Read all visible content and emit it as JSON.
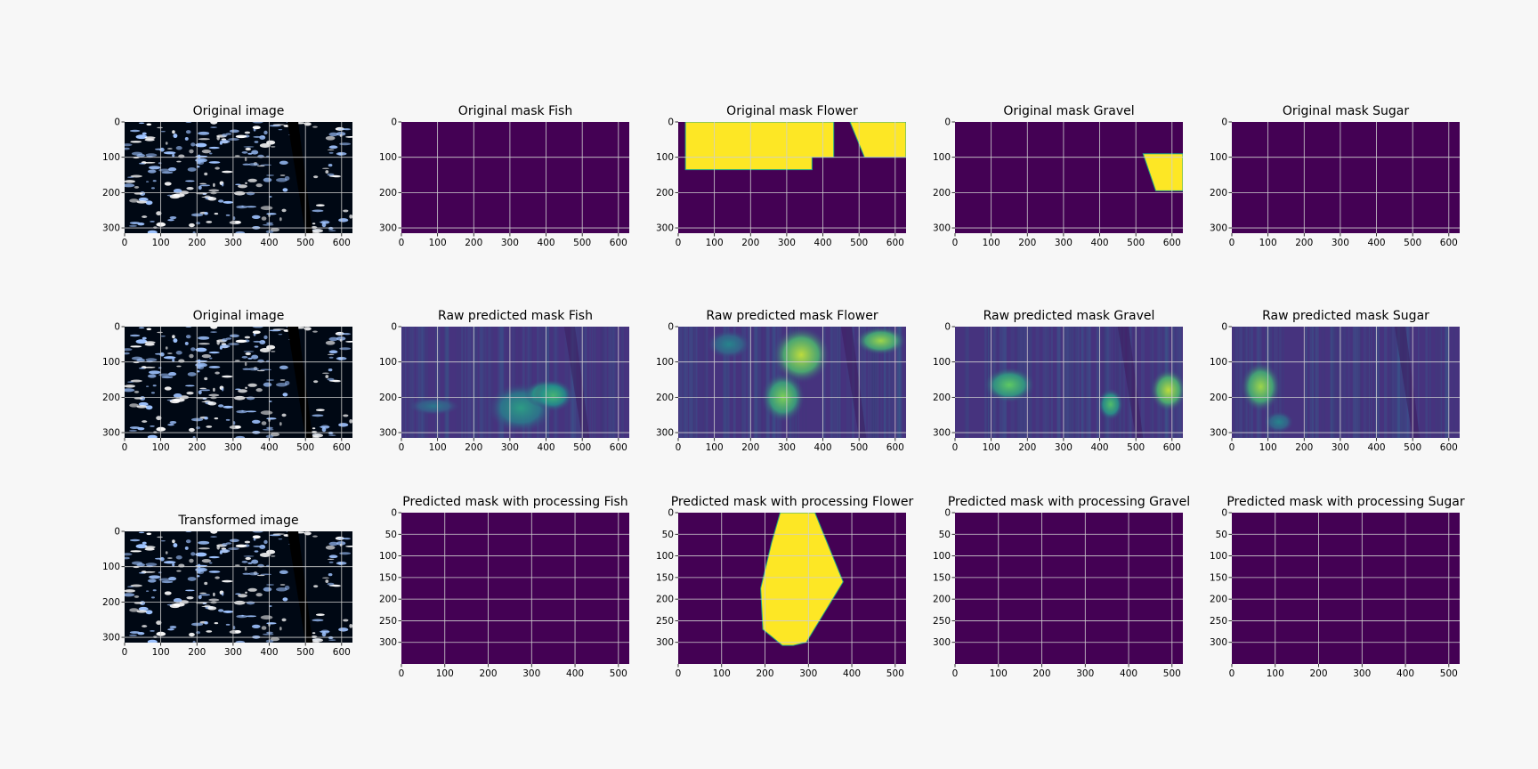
{
  "figure": {
    "rows": 3,
    "cols": 5,
    "colors": {
      "background": "#f7f7f7",
      "mask_low": "#440154",
      "mask_high": "#fde725",
      "mask_edge": "#22a884",
      "grid": "#cfcfcf",
      "image_dark": "#000814",
      "cloud": "#ffffff",
      "cloud_tint": "#9ec3ff"
    }
  },
  "chart_data": [
    {
      "type": "heatmap",
      "title": "Original image",
      "content": "satellite-image",
      "xticks": [
        "0",
        "100",
        "200",
        "300",
        "400",
        "500",
        "600"
      ],
      "yticks": [
        "0",
        "100",
        "200",
        "300"
      ],
      "xlim": [
        0,
        630
      ],
      "ylim": [
        0,
        315
      ]
    },
    {
      "type": "heatmap",
      "title": "Original mask Fish",
      "content": "empty-mask",
      "xticks": [
        "0",
        "100",
        "200",
        "300",
        "400",
        "500",
        "600"
      ],
      "yticks": [
        "0",
        "100",
        "200",
        "300"
      ],
      "xlim": [
        0,
        630
      ],
      "ylim": [
        0,
        315
      ]
    },
    {
      "type": "heatmap",
      "title": "Original mask Flower",
      "content": "mask-flower",
      "xticks": [
        "0",
        "100",
        "200",
        "300",
        "400",
        "500",
        "600"
      ],
      "yticks": [
        "0",
        "100",
        "200",
        "300"
      ],
      "xlim": [
        0,
        630
      ],
      "ylim": [
        0,
        315
      ],
      "regions": [
        {
          "shape": "polygon",
          "points": [
            [
              20,
              0
            ],
            [
              430,
              0
            ],
            [
              430,
              100
            ],
            [
              370,
              100
            ],
            [
              370,
              135
            ],
            [
              20,
              135
            ]
          ]
        },
        {
          "shape": "polygon",
          "points": [
            [
              475,
              0
            ],
            [
              630,
              0
            ],
            [
              630,
              100
            ],
            [
              515,
              100
            ]
          ]
        }
      ]
    },
    {
      "type": "heatmap",
      "title": "Original mask Gravel",
      "content": "mask-gravel",
      "xticks": [
        "0",
        "100",
        "200",
        "300",
        "400",
        "500",
        "600"
      ],
      "yticks": [
        "0",
        "100",
        "200",
        "300"
      ],
      "xlim": [
        0,
        630
      ],
      "ylim": [
        0,
        315
      ],
      "regions": [
        {
          "shape": "polygon",
          "points": [
            [
              520,
              90
            ],
            [
              630,
              90
            ],
            [
              630,
              195
            ],
            [
              555,
              195
            ]
          ]
        }
      ]
    },
    {
      "type": "heatmap",
      "title": "Original mask Sugar",
      "content": "empty-mask",
      "xticks": [
        "0",
        "100",
        "200",
        "300",
        "400",
        "500",
        "600"
      ],
      "yticks": [
        "0",
        "100",
        "200",
        "300"
      ],
      "xlim": [
        0,
        630
      ],
      "ylim": [
        0,
        315
      ]
    },
    {
      "type": "heatmap",
      "title": "Original image",
      "content": "satellite-image",
      "xticks": [
        "0",
        "100",
        "200",
        "300",
        "400",
        "500",
        "600"
      ],
      "yticks": [
        "0",
        "100",
        "200",
        "300"
      ],
      "xlim": [
        0,
        630
      ],
      "ylim": [
        0,
        315
      ]
    },
    {
      "type": "heatmap",
      "title": "Raw predicted mask Fish",
      "content": "raw-pred-fish",
      "xticks": [
        "0",
        "100",
        "200",
        "300",
        "400",
        "500",
        "600"
      ],
      "yticks": [
        "0",
        "100",
        "200",
        "300"
      ],
      "xlim": [
        0,
        630
      ],
      "ylim": [
        0,
        315
      ],
      "blobs": [
        {
          "cx": 330,
          "cy": 230,
          "rx": 90,
          "ry": 70,
          "v": 0.55
        },
        {
          "cx": 400,
          "cy": 190,
          "rx": 60,
          "ry": 40,
          "v": 0.7
        },
        {
          "cx": 420,
          "cy": 195,
          "rx": 55,
          "ry": 45,
          "v": 0.65
        },
        {
          "cx": 90,
          "cy": 225,
          "rx": 70,
          "ry": 25,
          "v": 0.4
        }
      ]
    },
    {
      "type": "heatmap",
      "title": "Raw predicted mask Flower",
      "content": "raw-pred-flower",
      "xticks": [
        "0",
        "100",
        "200",
        "300",
        "400",
        "500",
        "600"
      ],
      "yticks": [
        "0",
        "100",
        "200",
        "300"
      ],
      "xlim": [
        0,
        630
      ],
      "ylim": [
        0,
        315
      ],
      "blobs": [
        {
          "cx": 340,
          "cy": 80,
          "rx": 80,
          "ry": 80,
          "v": 0.9
        },
        {
          "cx": 290,
          "cy": 200,
          "rx": 60,
          "ry": 70,
          "v": 0.8
        },
        {
          "cx": 560,
          "cy": 40,
          "rx": 70,
          "ry": 40,
          "v": 0.85
        },
        {
          "cx": 140,
          "cy": 50,
          "rx": 60,
          "ry": 40,
          "v": 0.45
        }
      ]
    },
    {
      "type": "heatmap",
      "title": "Raw predicted mask Gravel",
      "content": "raw-pred-gravel",
      "xticks": [
        "0",
        "100",
        "200",
        "300",
        "400",
        "500",
        "600"
      ],
      "yticks": [
        "0",
        "100",
        "200",
        "300"
      ],
      "xlim": [
        0,
        630
      ],
      "ylim": [
        0,
        315
      ],
      "blobs": [
        {
          "cx": 150,
          "cy": 165,
          "rx": 70,
          "ry": 50,
          "v": 0.75
        },
        {
          "cx": 430,
          "cy": 220,
          "rx": 35,
          "ry": 45,
          "v": 0.7
        },
        {
          "cx": 590,
          "cy": 180,
          "rx": 50,
          "ry": 60,
          "v": 0.9
        }
      ]
    },
    {
      "type": "heatmap",
      "title": "Raw predicted mask Sugar",
      "content": "raw-pred-sugar",
      "xticks": [
        "0",
        "100",
        "200",
        "300",
        "400",
        "500",
        "600"
      ],
      "yticks": [
        "0",
        "100",
        "200",
        "300"
      ],
      "xlim": [
        0,
        630
      ],
      "ylim": [
        0,
        315
      ],
      "blobs": [
        {
          "cx": 80,
          "cy": 170,
          "rx": 55,
          "ry": 70,
          "v": 0.85
        },
        {
          "cx": 130,
          "cy": 270,
          "rx": 40,
          "ry": 30,
          "v": 0.45
        }
      ]
    },
    {
      "type": "heatmap",
      "title": "Transformed image",
      "content": "satellite-image",
      "xticks": [
        "0",
        "100",
        "200",
        "300",
        "400",
        "500",
        "600"
      ],
      "yticks": [
        "0",
        "100",
        "200",
        "300"
      ],
      "xlim": [
        0,
        630
      ],
      "ylim": [
        0,
        315
      ]
    },
    {
      "type": "heatmap",
      "title": "Predicted mask with processing Fish",
      "content": "empty-mask",
      "xticks": [
        "0",
        "100",
        "200",
        "300",
        "400",
        "500"
      ],
      "yticks": [
        "0",
        "50",
        "100",
        "150",
        "200",
        "250",
        "300"
      ],
      "xlim": [
        0,
        525
      ],
      "ylim": [
        0,
        350
      ]
    },
    {
      "type": "heatmap",
      "title": "Predicted mask with processing Flower",
      "content": "mask-processed-flower",
      "xticks": [
        "0",
        "100",
        "200",
        "300",
        "400",
        "500"
      ],
      "yticks": [
        "0",
        "50",
        "100",
        "150",
        "200",
        "250",
        "300"
      ],
      "xlim": [
        0,
        525
      ],
      "ylim": [
        0,
        350
      ],
      "regions": [
        {
          "shape": "polygon",
          "points": [
            [
              235,
              0
            ],
            [
              315,
              0
            ],
            [
              380,
              160
            ],
            [
              295,
              300
            ],
            [
              265,
              307
            ],
            [
              240,
              307
            ],
            [
              195,
              270
            ],
            [
              190,
              175
            ],
            [
              215,
              70
            ]
          ]
        }
      ]
    },
    {
      "type": "heatmap",
      "title": "Predicted mask with processing Gravel",
      "content": "empty-mask",
      "xticks": [
        "0",
        "100",
        "200",
        "300",
        "400",
        "500"
      ],
      "yticks": [
        "0",
        "50",
        "100",
        "150",
        "200",
        "250",
        "300"
      ],
      "xlim": [
        0,
        525
      ],
      "ylim": [
        0,
        350
      ]
    },
    {
      "type": "heatmap",
      "title": "Predicted mask with processing Sugar",
      "content": "empty-mask",
      "xticks": [
        "0",
        "100",
        "200",
        "300",
        "400",
        "500"
      ],
      "yticks": [
        "0",
        "50",
        "100",
        "150",
        "200",
        "250",
        "300"
      ],
      "xlim": [
        0,
        525
      ],
      "ylim": [
        0,
        350
      ]
    }
  ]
}
